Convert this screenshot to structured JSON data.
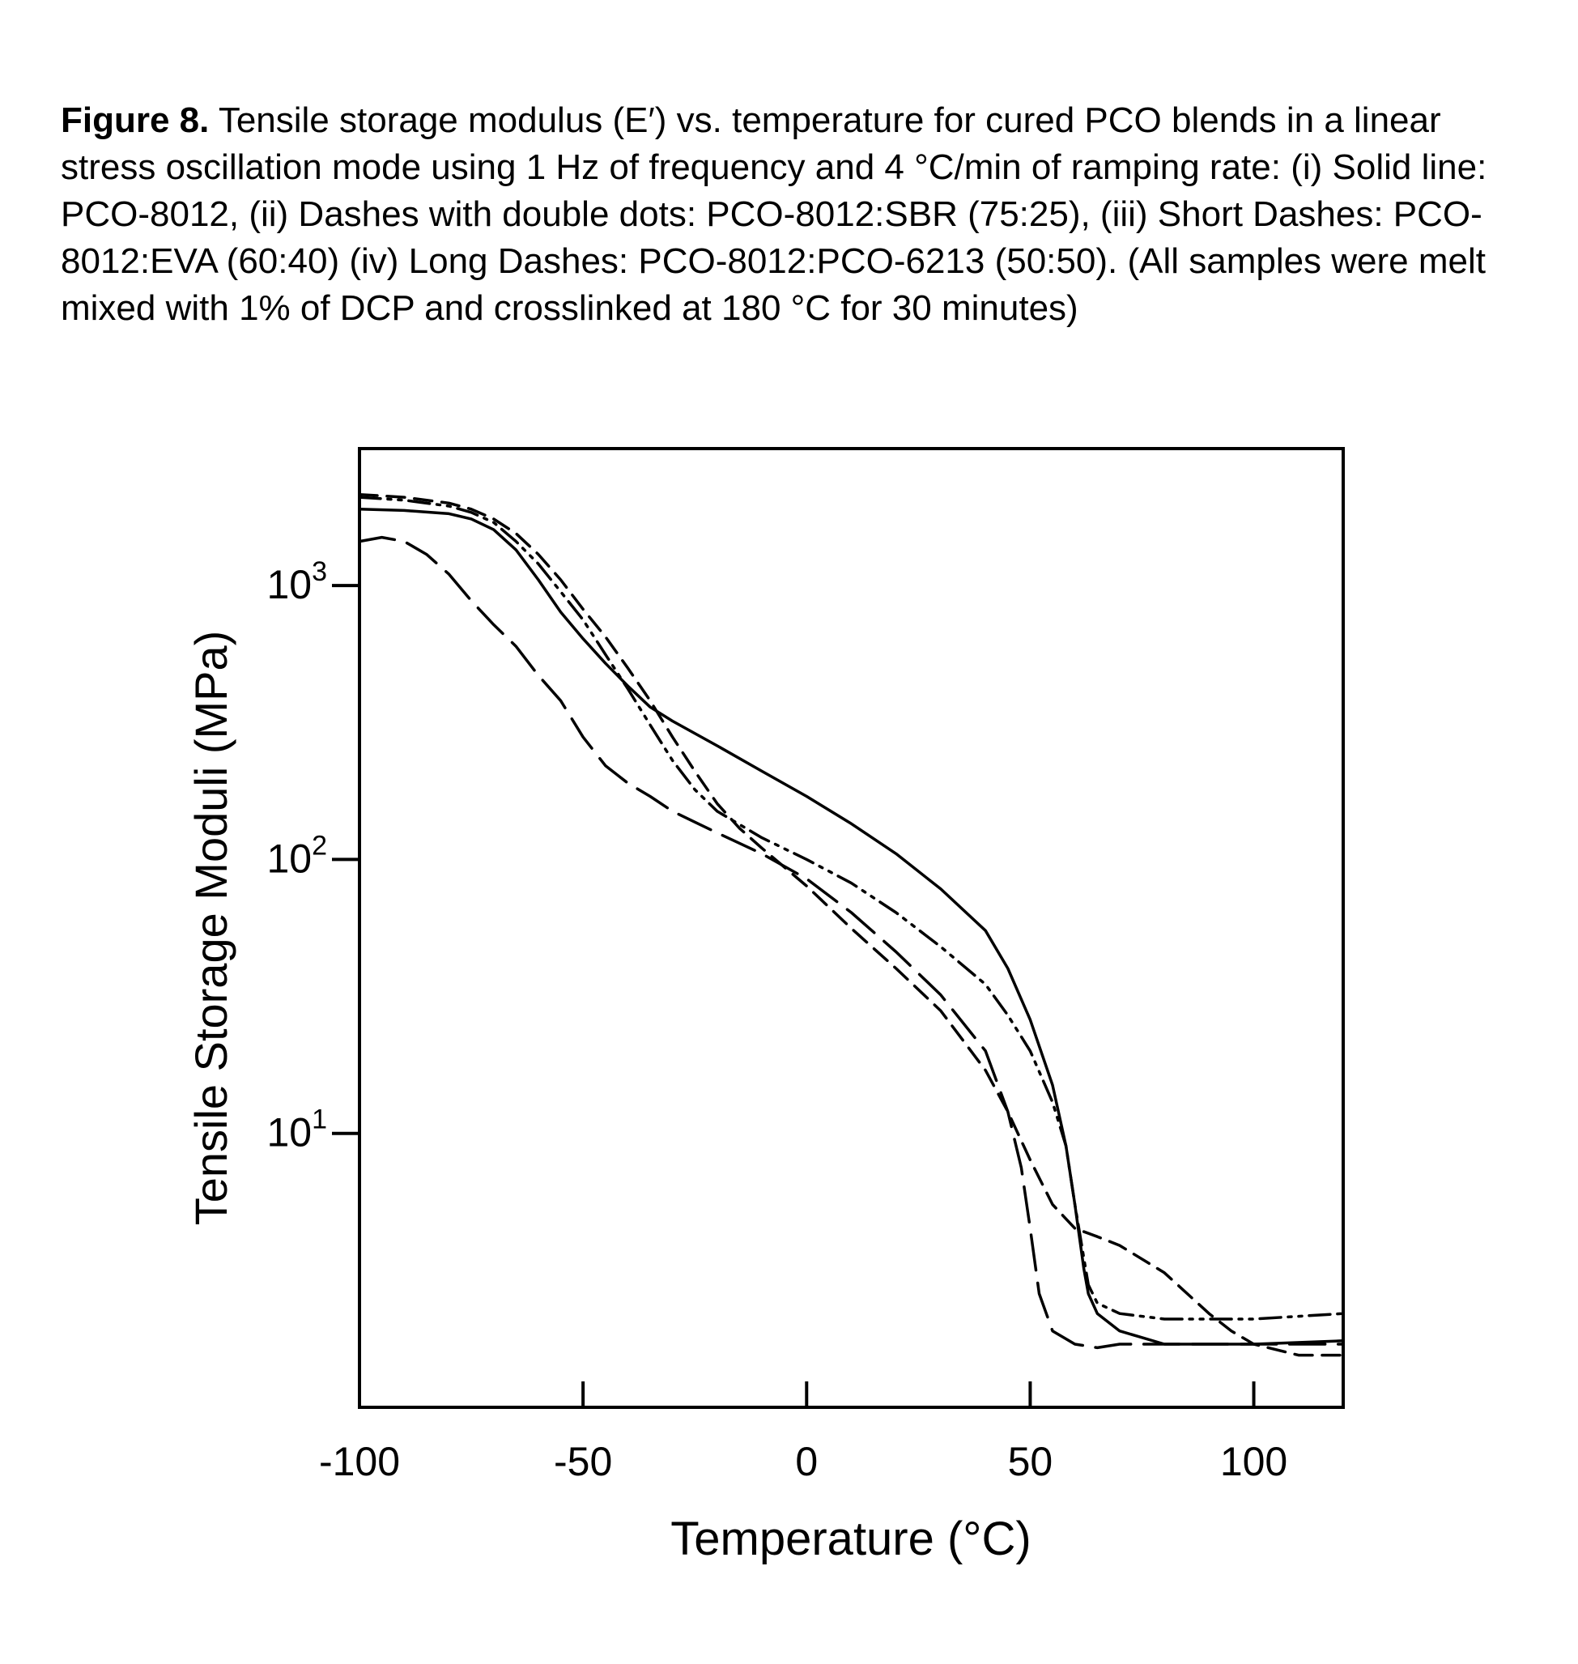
{
  "caption": {
    "lead": "Figure 8.",
    "text": "Tensile storage modulus (E′) vs. temperature for cured PCO blends in a linear stress oscillation mode using 1 Hz of frequency and 4 °C/min of ramping rate: (i) Solid line: PCO-8012, (ii) Dashes with double dots: PCO-8012:SBR (75:25), (iii) Short Dashes: PCO-8012:EVA (60:40) (iv) Long Dashes: PCO-8012:PCO-6213 (50:50). (All samples were melt mixed with 1% of DCP and crosslinked at 180 °C for 30 minutes)"
  },
  "chart_data": {
    "type": "line",
    "xlabel": "Temperature (°C)",
    "ylabel": "Tensile Storage Moduli (MPa)",
    "xlim": [
      -100,
      120
    ],
    "ylim_log10": [
      0,
      3.5
    ],
    "y_scale": "log",
    "x_ticks": [
      {
        "value": -100,
        "label": "-100"
      },
      {
        "value": -50,
        "label": "-50"
      },
      {
        "value": 0,
        "label": "0"
      },
      {
        "value": 50,
        "label": "50"
      },
      {
        "value": 100,
        "label": "100"
      }
    ],
    "y_ticks": [
      {
        "value": 10,
        "base": "10",
        "exp": "1"
      },
      {
        "value": 100,
        "base": "10",
        "exp": "2"
      },
      {
        "value": 1000,
        "base": "10",
        "exp": "3"
      }
    ],
    "grid": false,
    "legend": "none",
    "series": [
      {
        "name": "Solid line: PCO-8012",
        "style": "solid",
        "x": [
          -100,
          -90,
          -80,
          -75,
          -70,
          -65,
          -60,
          -55,
          -50,
          -45,
          -40,
          -35,
          -30,
          -20,
          -10,
          0,
          10,
          20,
          30,
          40,
          45,
          50,
          55,
          58,
          60,
          62,
          63,
          65,
          70,
          80,
          90,
          100,
          120
        ],
        "y": [
          1900,
          1880,
          1830,
          1750,
          1600,
          1350,
          1050,
          800,
          640,
          520,
          430,
          360,
          320,
          260,
          210,
          170,
          135,
          105,
          78,
          55,
          40,
          26,
          15,
          9,
          5.5,
          3.2,
          2.6,
          2.2,
          1.9,
          1.7,
          1.7,
          1.7,
          1.75
        ]
      },
      {
        "name": "Dashes with double dots: PCO-8012:SBR (75:25)",
        "style": "dash-dot-dot",
        "x": [
          -100,
          -90,
          -80,
          -75,
          -70,
          -65,
          -60,
          -55,
          -50,
          -45,
          -40,
          -35,
          -30,
          -25,
          -20,
          -10,
          0,
          10,
          20,
          30,
          40,
          45,
          50,
          55,
          58,
          60,
          62,
          63,
          65,
          70,
          80,
          90,
          100,
          120
        ],
        "y": [
          2100,
          2050,
          1950,
          1850,
          1700,
          1450,
          1200,
          950,
          750,
          560,
          420,
          310,
          230,
          180,
          150,
          120,
          100,
          82,
          64,
          48,
          35,
          27,
          20,
          13,
          9,
          5.5,
          3.5,
          2.8,
          2.4,
          2.2,
          2.1,
          2.1,
          2.1,
          2.2
        ]
      },
      {
        "name": "Short Dashes: PCO-8012:EVA (60:40)",
        "style": "short-dash",
        "x": [
          -100,
          -90,
          -80,
          -75,
          -70,
          -65,
          -60,
          -55,
          -50,
          -45,
          -40,
          -35,
          -30,
          -25,
          -20,
          -15,
          -10,
          0,
          10,
          20,
          30,
          40,
          45,
          50,
          55,
          60,
          65,
          70,
          80,
          90,
          95,
          100,
          110,
          120
        ],
        "y": [
          2150,
          2100,
          2000,
          1900,
          1750,
          1550,
          1300,
          1050,
          820,
          650,
          500,
          380,
          280,
          210,
          160,
          130,
          110,
          80,
          56,
          40,
          28,
          17,
          12,
          8,
          5.5,
          4.5,
          4.2,
          3.9,
          3.1,
          2.2,
          1.9,
          1.7,
          1.55,
          1.55
        ]
      },
      {
        "name": "Long Dashes: PCO-8012:PCO-6213 (50:50)",
        "style": "long-dash",
        "x": [
          -100,
          -95,
          -90,
          -85,
          -80,
          -75,
          -70,
          -65,
          -60,
          -55,
          -50,
          -45,
          -40,
          -35,
          -30,
          -20,
          -10,
          0,
          10,
          20,
          30,
          40,
          45,
          48,
          50,
          52,
          55,
          60,
          65,
          70,
          80,
          90,
          100,
          120
        ],
        "y": [
          1450,
          1500,
          1450,
          1300,
          1100,
          880,
          720,
          600,
          470,
          380,
          280,
          220,
          190,
          170,
          150,
          125,
          105,
          85,
          64,
          46,
          32,
          20,
          12,
          7.5,
          4.5,
          2.6,
          1.9,
          1.7,
          1.65,
          1.7,
          1.7,
          1.7,
          1.7,
          1.7
        ]
      }
    ]
  }
}
